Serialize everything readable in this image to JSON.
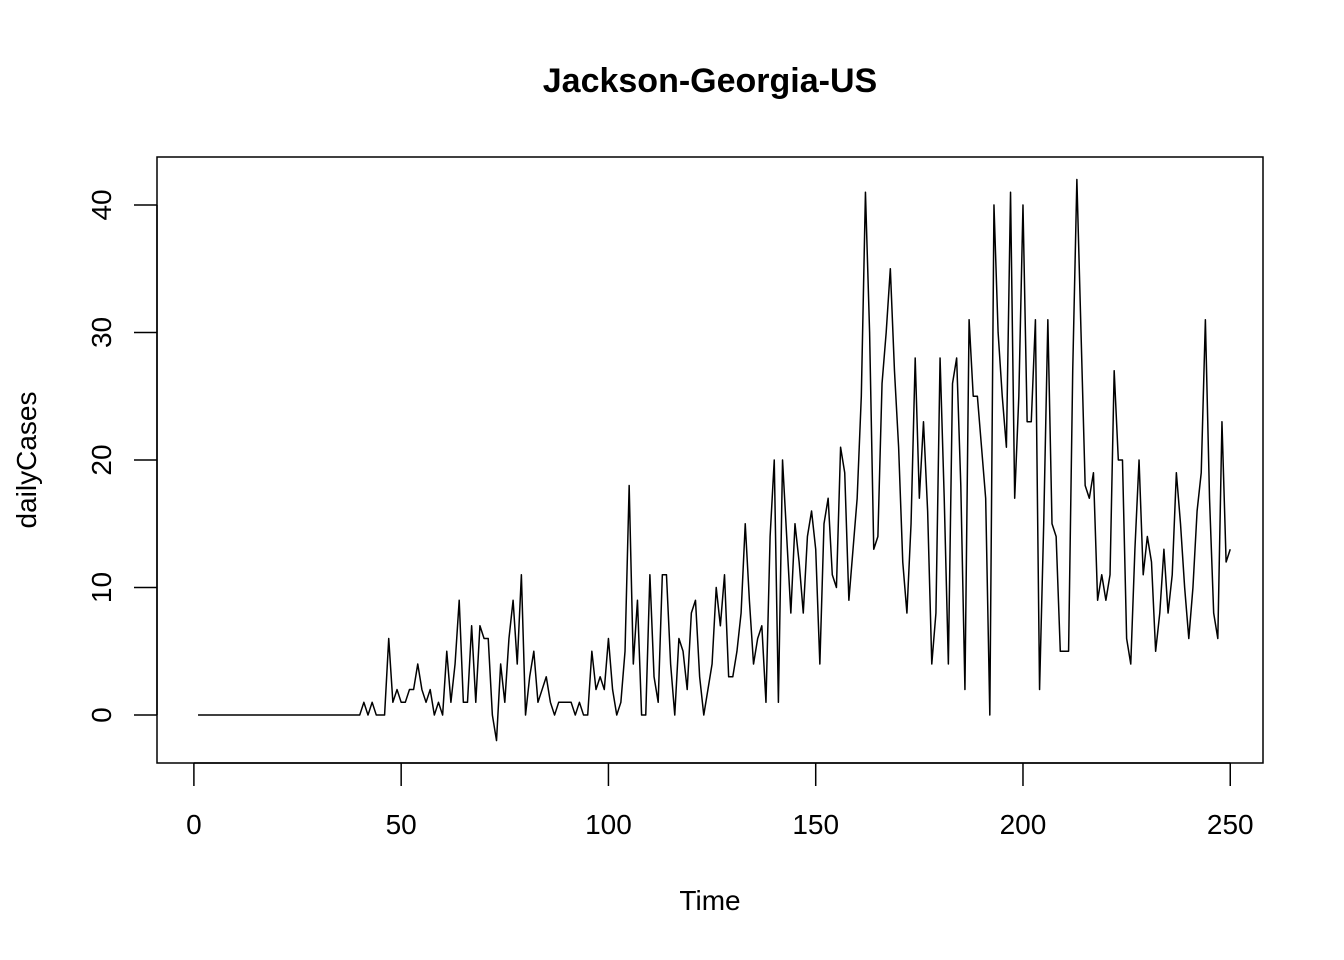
{
  "chart_data": {
    "type": "line",
    "title": "Jackson-Georgia-US",
    "xlabel": "Time",
    "ylabel": "dailyCases",
    "xlim": [
      -8.9,
      257.9
    ],
    "ylim": [
      -3.76,
      43.76
    ],
    "xticks": [
      0,
      50,
      100,
      150,
      200,
      250
    ],
    "yticks": [
      0,
      10,
      20,
      30,
      40
    ],
    "grid": false,
    "series": [
      {
        "values": [
          0,
          0,
          0,
          0,
          0,
          0,
          0,
          0,
          0,
          0,
          0,
          0,
          0,
          0,
          0,
          0,
          0,
          0,
          0,
          0,
          0,
          0,
          0,
          0,
          0,
          0,
          0,
          0,
          0,
          0,
          0,
          0,
          0,
          0,
          0,
          0,
          0,
          0,
          0,
          0,
          1,
          0,
          1,
          0,
          0,
          0,
          6,
          1,
          2,
          1,
          1,
          2,
          2,
          4,
          2,
          1,
          2,
          0,
          1,
          0,
          5,
          1,
          4,
          9,
          1,
          1,
          7,
          1,
          7,
          6,
          6,
          0,
          -2,
          4,
          1,
          6,
          9,
          4,
          11,
          0,
          3,
          5,
          1,
          2,
          3,
          1,
          0,
          1,
          1,
          1,
          1,
          0,
          1,
          0,
          0,
          5,
          2,
          3,
          2,
          6,
          2,
          0,
          1,
          5,
          18,
          4,
          9,
          0,
          0,
          11,
          3,
          1,
          11,
          11,
          4,
          0,
          6,
          5,
          2,
          8,
          9,
          3,
          0,
          2,
          4,
          10,
          7,
          11,
          3,
          3,
          5,
          8,
          15,
          9,
          4,
          6,
          7,
          1,
          14,
          20,
          1,
          20,
          14,
          8,
          15,
          12,
          8,
          14,
          16,
          13,
          4,
          15,
          17,
          11,
          10,
          21,
          19,
          9,
          13,
          17,
          25,
          41,
          30,
          13,
          14,
          26,
          30,
          35,
          27,
          21,
          12,
          8,
          15,
          28,
          17,
          23,
          16,
          4,
          8,
          28,
          17,
          4,
          26,
          28,
          18,
          2,
          31,
          25,
          25,
          21,
          17,
          0,
          40,
          30,
          25,
          21,
          41,
          17,
          25,
          40,
          23,
          23,
          31,
          2,
          15,
          31,
          15,
          14,
          5,
          5,
          5,
          27,
          42,
          30,
          18,
          17,
          19,
          9,
          11,
          9,
          11,
          27,
          20,
          20,
          6,
          4,
          13,
          20,
          11,
          14,
          12,
          5,
          8,
          13,
          8,
          11,
          19,
          15,
          10,
          6,
          10,
          16,
          19,
          31,
          17,
          8,
          6,
          23,
          12,
          13
        ]
      }
    ]
  }
}
